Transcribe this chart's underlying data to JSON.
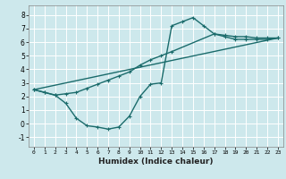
{
  "xlabel": "Humidex (Indice chaleur)",
  "background_color": "#cde8ec",
  "grid_color": "#ffffff",
  "line_color": "#1a6b6b",
  "xlim": [
    -0.5,
    23.5
  ],
  "ylim": [
    -1.7,
    8.7
  ],
  "yticks": [
    -1,
    0,
    1,
    2,
    3,
    4,
    5,
    6,
    7,
    8
  ],
  "xticks": [
    0,
    1,
    2,
    3,
    4,
    5,
    6,
    7,
    8,
    9,
    10,
    11,
    12,
    13,
    14,
    15,
    16,
    17,
    18,
    19,
    20,
    21,
    22,
    23
  ],
  "line1_x": [
    0,
    1,
    2,
    3,
    4,
    5,
    6,
    7,
    8,
    9,
    10,
    11,
    12,
    13,
    14,
    15,
    16,
    17,
    18,
    19,
    20,
    21,
    22,
    23
  ],
  "line1_y": [
    2.5,
    2.3,
    2.1,
    1.5,
    0.4,
    -0.15,
    -0.25,
    -0.4,
    -0.25,
    0.55,
    2.0,
    2.9,
    3.0,
    7.2,
    7.5,
    7.8,
    7.2,
    6.6,
    6.5,
    6.4,
    6.4,
    6.3,
    6.3,
    6.3
  ],
  "line2_x": [
    0,
    1,
    2,
    3,
    4,
    5,
    6,
    7,
    8,
    9,
    10,
    11,
    12,
    13,
    17,
    18,
    19,
    20,
    21,
    22,
    23
  ],
  "line2_y": [
    2.5,
    2.3,
    2.1,
    2.2,
    2.3,
    2.6,
    2.9,
    3.2,
    3.5,
    3.8,
    4.3,
    4.7,
    5.0,
    5.3,
    6.6,
    6.4,
    6.2,
    6.2,
    6.2,
    6.2,
    6.3
  ],
  "line3_x": [
    0,
    23
  ],
  "line3_y": [
    2.5,
    6.3
  ]
}
